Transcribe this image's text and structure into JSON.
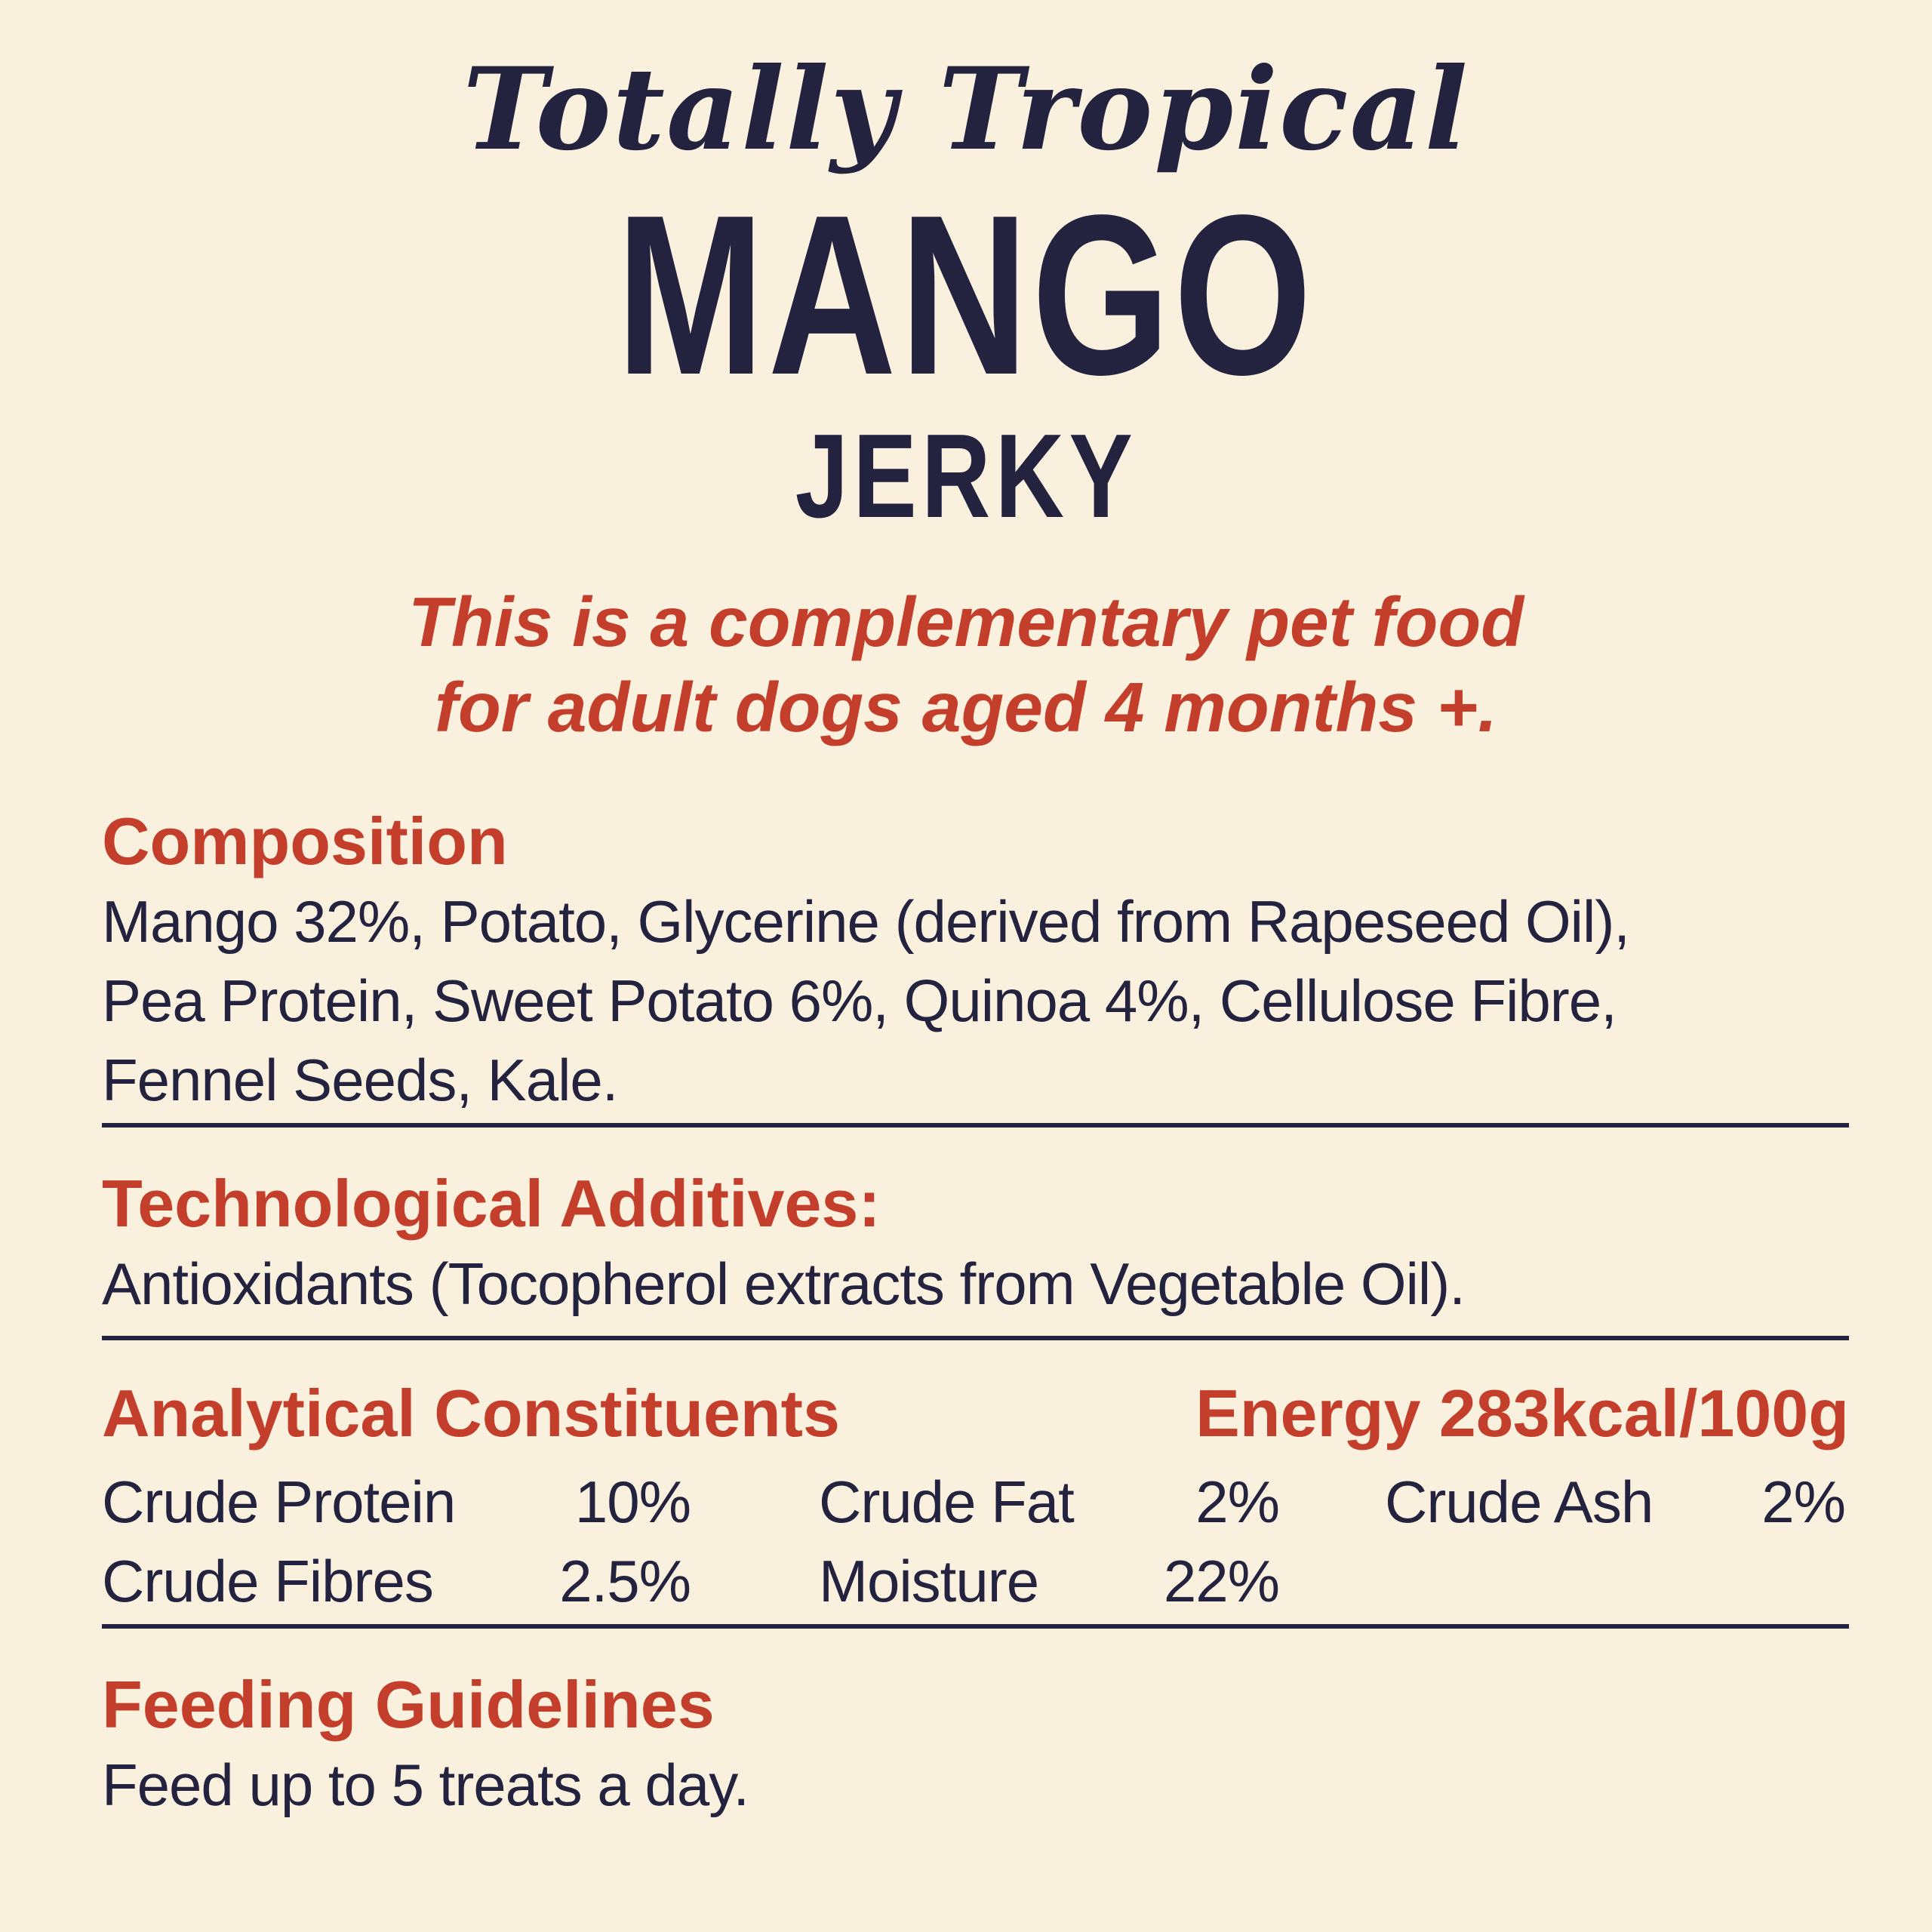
{
  "colors": {
    "background": "#FAF0DE",
    "accent_red": "#C33E2B",
    "navy": "#232340"
  },
  "header": {
    "brand_line": "Totally Tropical",
    "product_name": "MANGO",
    "product_form": "JERKY",
    "tagline_lines": [
      "This is a complementary pet food",
      "for adult dogs aged 4 months +."
    ]
  },
  "composition": {
    "heading": "Composition",
    "lines": [
      "Mango 32%, Potato, Glycerine (derived from Rapeseed Oil),",
      "Pea Protein, Sweet Potato 6%, Quinoa 4%, Cellulose Fibre,",
      "Fennel Seeds, Kale."
    ]
  },
  "additives": {
    "heading": "Technological Additives:",
    "body": "Antioxidants (Tocopherol extracts from Vegetable Oil)."
  },
  "analytical": {
    "heading": "Analytical Constituents",
    "energy": "Energy 283kcal/100g",
    "constituents": [
      {
        "label": "Crude Protein",
        "value": "10%"
      },
      {
        "label": "Crude Fat",
        "value": "2%"
      },
      {
        "label": "Crude Ash",
        "value": "2%"
      },
      {
        "label": "Crude Fibres",
        "value": "2.5%"
      },
      {
        "label": "Moisture",
        "value": "22%"
      }
    ]
  },
  "feeding": {
    "heading": "Feeding Guidelines",
    "body": "Feed up to 5 treats a day."
  }
}
